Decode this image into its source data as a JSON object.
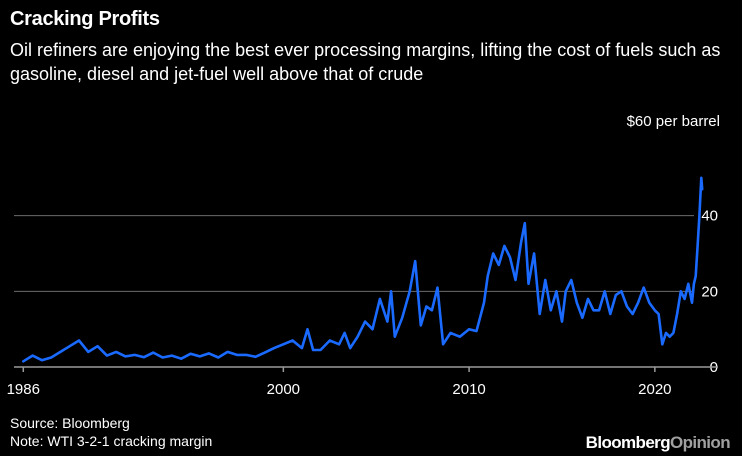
{
  "header": {
    "title": "Cracking Profits",
    "subtitle": "Oil refiners are enjoying the best ever processing margins, lifting the cost of fuels such as gasoline, diesel and jet-fuel well above that of crude",
    "unit_label": "$60 per barrel"
  },
  "footer": {
    "source": "Source: Bloomberg",
    "note": "Note: WTI 3-2-1 cracking margin",
    "brand_part1": "Bloomberg",
    "brand_part2": "Opinion"
  },
  "colors": {
    "line": "#1a6aff",
    "grid": "#6b6b6b",
    "axis": "#9a9a9a",
    "text": "#ffffff"
  },
  "chart_data": {
    "type": "line",
    "title": "Cracking Profits",
    "xlabel": "",
    "ylabel": "$ per barrel",
    "xlim": [
      1985.5,
      2023.4
    ],
    "ylim": [
      0,
      60
    ],
    "x_ticks": [
      1986,
      2000,
      2010,
      2020
    ],
    "y_ticks": [
      0,
      20,
      40
    ],
    "y_tick_labels": [
      "0",
      "20",
      "40"
    ],
    "series": [
      {
        "name": "WTI 3-2-1 cracking margin",
        "x": [
          1986.0,
          1986.5,
          1987.0,
          1987.5,
          1988.0,
          1988.5,
          1989.0,
          1989.5,
          1990.0,
          1990.5,
          1991.0,
          1991.5,
          1992.0,
          1992.5,
          1993.0,
          1993.5,
          1994.0,
          1994.5,
          1995.0,
          1995.5,
          1996.0,
          1996.5,
          1997.0,
          1997.5,
          1998.0,
          1998.5,
          1999.0,
          1999.5,
          2000.0,
          2000.5,
          2001.0,
          2001.3,
          2001.6,
          2002.0,
          2002.5,
          2003.0,
          2003.3,
          2003.6,
          2004.0,
          2004.4,
          2004.8,
          2005.2,
          2005.6,
          2005.8,
          2006.0,
          2006.4,
          2006.8,
          2007.1,
          2007.4,
          2007.7,
          2008.0,
          2008.3,
          2008.6,
          2009.0,
          2009.5,
          2010.0,
          2010.4,
          2010.8,
          2011.0,
          2011.3,
          2011.6,
          2011.9,
          2012.2,
          2012.5,
          2012.8,
          2013.0,
          2013.2,
          2013.5,
          2013.8,
          2014.1,
          2014.4,
          2014.7,
          2015.0,
          2015.2,
          2015.5,
          2015.8,
          2016.1,
          2016.4,
          2016.7,
          2017.0,
          2017.3,
          2017.6,
          2017.9,
          2018.2,
          2018.5,
          2018.8,
          2019.1,
          2019.4,
          2019.7,
          2020.0,
          2020.2,
          2020.4,
          2020.6,
          2020.8,
          2021.0,
          2021.2,
          2021.4,
          2021.6,
          2021.8,
          2022.0,
          2022.1,
          2022.2,
          2022.3,
          2022.4,
          2022.5,
          2022.55
        ],
        "values": [
          1.5,
          3.0,
          1.8,
          2.5,
          4.0,
          5.5,
          7.0,
          4.0,
          5.5,
          3.0,
          4.0,
          2.8,
          3.2,
          2.6,
          3.8,
          2.5,
          3.0,
          2.2,
          3.5,
          2.8,
          3.6,
          2.5,
          4.0,
          3.2,
          3.2,
          2.7,
          3.8,
          5.0,
          6.0,
          7.0,
          5.0,
          10.0,
          4.5,
          4.5,
          7.0,
          6.0,
          9.0,
          5.0,
          8.0,
          12.0,
          10.0,
          18.0,
          12.0,
          20.0,
          8.0,
          13.0,
          20.0,
          28.0,
          11.0,
          16.0,
          15.0,
          21.0,
          6.0,
          9.0,
          8.0,
          10.0,
          9.5,
          17.0,
          24.0,
          30.0,
          27.0,
          32.0,
          29.0,
          23.0,
          33.0,
          38.0,
          22.0,
          30.0,
          14.0,
          23.0,
          15.0,
          20.0,
          12.0,
          20.0,
          23.0,
          17.0,
          13.0,
          18.0,
          15.0,
          15.0,
          20.0,
          14.0,
          19.0,
          20.0,
          16.0,
          14.0,
          17.0,
          21.0,
          17.0,
          15.0,
          14.0,
          6.0,
          9.0,
          8.0,
          9.0,
          14.0,
          20.0,
          18.0,
          22.0,
          17.0,
          22.0,
          24.0,
          32.0,
          40.0,
          50.0,
          47.0
        ]
      }
    ]
  }
}
